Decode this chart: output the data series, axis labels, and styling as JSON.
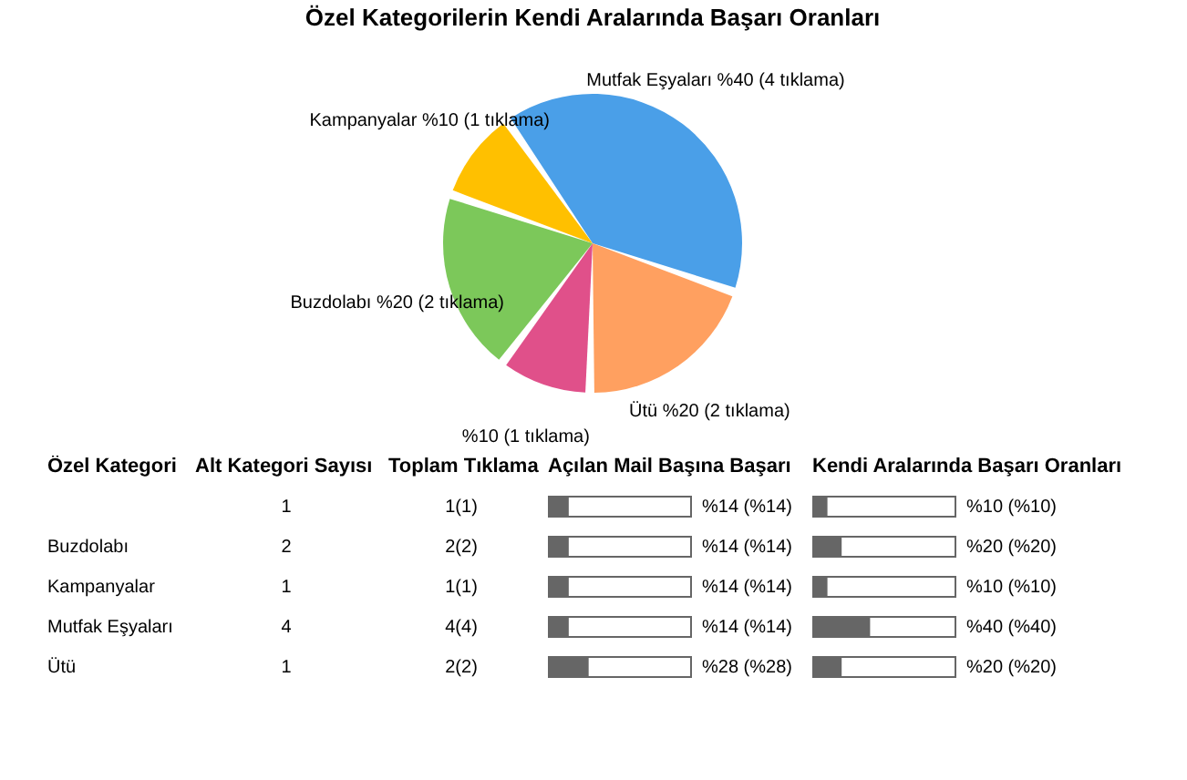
{
  "chart_data": [
    {
      "type": "pie",
      "title": "Özel Kategorilerin Kendi Aralarında Başarı Oranları",
      "categories": [
        "Mutfak Eşyaları",
        "Ütü",
        null,
        "Buzdolabı",
        "Kampanyalar"
      ],
      "values": [
        40,
        20,
        10,
        20,
        10
      ],
      "value_labels": [
        "%40 (4 tıklama)",
        "%20 (2 tıklama)",
        "%10 (1 tıklama)",
        "%20 (2 tıklama)",
        "%10 (1 tıklama)"
      ],
      "colors": [
        "#4a9fe8",
        "#ffa060",
        "#e0508a",
        "#7cc85a",
        "#ffc000"
      ]
    },
    {
      "type": "other",
      "ylabel": "Özel Kategori",
      "categories": [
        "Alt Kategori Sayısı",
        "Toplam Tıklama"
      ],
      "y_categories": [
        null,
        "Buzdolabı",
        "Kampanyalar",
        "Mutfak Eşyaları",
        "Ütü"
      ],
      "cell_labels": [
        [
          "1",
          "1(1)"
        ],
        [
          "2",
          "2(2)"
        ],
        [
          "1",
          "1(1)"
        ],
        [
          "4",
          "4(4)"
        ],
        [
          "1",
          "2(2)"
        ]
      ]
    },
    {
      "type": "bar",
      "orientation": "horizontal",
      "categories": [
        null,
        null,
        null,
        null,
        null
      ],
      "xlim": [
        0,
        100
      ],
      "series": [
        {
          "name": "Açılan Mail Başına Başarı",
          "color": "#666666",
          "values": [
            14,
            14,
            14,
            14,
            28
          ],
          "value_labels": [
            "%14 (%14)",
            "%14 (%14)",
            "%14 (%14)",
            "%14 (%14)",
            "%28 (%28)"
          ]
        }
      ]
    },
    {
      "type": "bar",
      "orientation": "horizontal",
      "categories": [
        null,
        null,
        null,
        null,
        null
      ],
      "xlim": [
        0,
        100
      ],
      "series": [
        {
          "name": "Kendi Aralarında Başarı Oranları",
          "color": "#666666",
          "values": [
            10,
            20,
            10,
            40,
            20
          ],
          "value_labels": [
            "%10 (%10)",
            "%20 (%20)",
            "%10 (%10)",
            "%40 (%40)",
            "%20 (%20)"
          ]
        }
      ]
    }
  ]
}
